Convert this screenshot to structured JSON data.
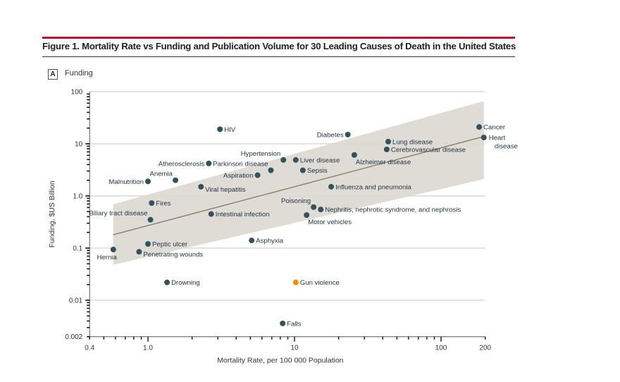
{
  "figure": {
    "title": "Figure 1. Mortality Rate vs Funding and Publication Volume for 30 Leading Causes of Death in the United States",
    "panel_letter": "A",
    "panel_label": "Funding",
    "accent_color": "#c8102e"
  },
  "chart_data": {
    "type": "scatter",
    "title": "Funding",
    "xlabel": "Mortality Rate, per 100 000 Population",
    "ylabel": "Funding, $US Billion",
    "xscale": "log",
    "yscale": "log",
    "xlim": [
      0.4,
      200
    ],
    "ylim": [
      0.002,
      100
    ],
    "xticks": [
      {
        "v": 0.4,
        "label": "0.4"
      },
      {
        "v": 1,
        "label": "1.0"
      },
      {
        "v": 10,
        "label": "10"
      },
      {
        "v": 100,
        "label": "100"
      },
      {
        "v": 200,
        "label": "200"
      }
    ],
    "yticks": [
      {
        "v": 100,
        "label": "100"
      },
      {
        "v": 10,
        "label": "10"
      },
      {
        "v": 1,
        "label": "1.0"
      },
      {
        "v": 0.1,
        "label": "0.1"
      },
      {
        "v": 0.01,
        "label": "0.01"
      },
      {
        "v": 0.002,
        "label": "0.002"
      }
    ],
    "grid": "horizontal major",
    "point_color": "#33525e",
    "highlight_color": "#f39200",
    "band_color": "#dcd8d2",
    "fit_line_color": "#8a7f6a",
    "fit": {
      "x_range": [
        0.58,
        196
      ],
      "line_y": [
        0.18,
        13.8
      ],
      "ci_upper": [
        0.69,
        66
      ],
      "ci_lower": [
        0.048,
        2.1
      ]
    },
    "points": [
      {
        "name": "Cancer",
        "x": 182,
        "y": 21,
        "pos": "right"
      },
      {
        "name": "Heart disease",
        "x": 196,
        "y": 13.2,
        "pos": "right2"
      },
      {
        "name": "Lung disease",
        "x": 43.6,
        "y": 11,
        "pos": "right"
      },
      {
        "name": "Cerebrovascular disease",
        "x": 42.6,
        "y": 7.8,
        "pos": "right"
      },
      {
        "name": "Alzheimer disease",
        "x": 25.6,
        "y": 6.1,
        "pos": "below-right"
      },
      {
        "name": "Diabetes",
        "x": 23.1,
        "y": 15,
        "pos": "left"
      },
      {
        "name": "Liver disease",
        "x": 10.2,
        "y": 4.9,
        "pos": "right"
      },
      {
        "name": "Hypertension",
        "x": 8.4,
        "y": 4.9,
        "pos": "above-left"
      },
      {
        "name": "Parkinson disease",
        "x": 6.9,
        "y": 3.1,
        "pos": "above-left"
      },
      {
        "name": "Sepsis",
        "x": 11.4,
        "y": 3.1,
        "pos": "right"
      },
      {
        "name": "Aspiration",
        "x": 5.6,
        "y": 2.5,
        "pos": "left"
      },
      {
        "name": "Influenza and pneumonia",
        "x": 17.8,
        "y": 1.5,
        "pos": "right"
      },
      {
        "name": "HIV",
        "x": 3.1,
        "y": 19,
        "pos": "right"
      },
      {
        "name": "Atherosclerosis",
        "x": 2.6,
        "y": 4.2,
        "pos": "left"
      },
      {
        "name": "Viral hepatitis",
        "x": 2.3,
        "y": 1.5,
        "pos": "right-low"
      },
      {
        "name": "Anemia",
        "x": 1.54,
        "y": 2.0,
        "pos": "above-left"
      },
      {
        "name": "Malnutrition",
        "x": 1.0,
        "y": 1.9,
        "pos": "left"
      },
      {
        "name": "Fires",
        "x": 1.06,
        "y": 0.73,
        "pos": "right"
      },
      {
        "name": "Biliary tract disease",
        "x": 1.04,
        "y": 0.35,
        "pos": "above-left"
      },
      {
        "name": "Intestinal infection",
        "x": 2.7,
        "y": 0.45,
        "pos": "right"
      },
      {
        "name": "Poisoning",
        "x": 13.5,
        "y": 0.61,
        "pos": "above-left"
      },
      {
        "name": "Nephritis, nephrotic syndrome, and nephrosis",
        "x": 15.1,
        "y": 0.55,
        "pos": "right"
      },
      {
        "name": "Motor vehicles",
        "x": 12.1,
        "y": 0.43,
        "pos": "below-right"
      },
      {
        "name": "Asphyxia",
        "x": 5.1,
        "y": 0.14,
        "pos": "right"
      },
      {
        "name": "Peptic ulcer",
        "x": 1.0,
        "y": 0.12,
        "pos": "right"
      },
      {
        "name": "Hernia",
        "x": 0.58,
        "y": 0.094,
        "pos": "below-left"
      },
      {
        "name": "Penetrating wounds",
        "x": 0.87,
        "y": 0.085,
        "pos": "right-low"
      },
      {
        "name": "Drowning",
        "x": 1.35,
        "y": 0.022,
        "pos": "right"
      },
      {
        "name": "Gun violence",
        "x": 10.2,
        "y": 0.022,
        "pos": "right",
        "highlight": true
      },
      {
        "name": "Falls",
        "x": 8.3,
        "y": 0.0036,
        "pos": "right"
      }
    ]
  }
}
